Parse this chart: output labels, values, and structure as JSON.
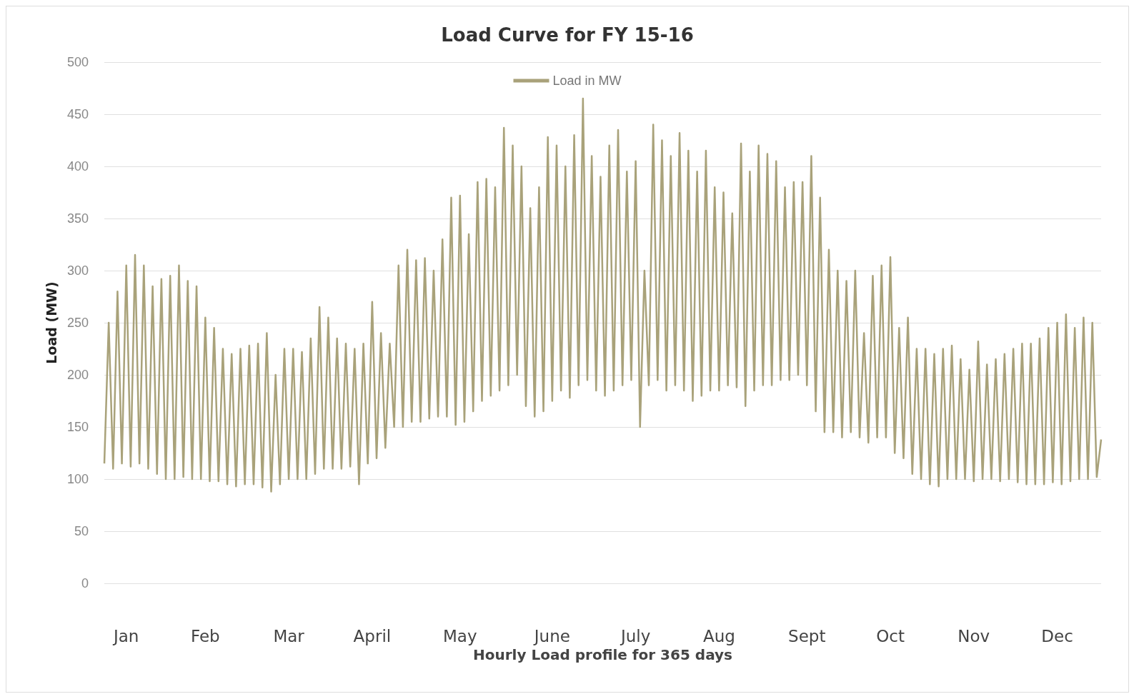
{
  "chart_data": {
    "type": "line",
    "title": "Load Curve for FY 15-16",
    "xlabel": "Hourly Load profile for 365 days",
    "ylabel": "Load (MW)",
    "categories": [
      null,
      null,
      null,
      null,
      null,
      "Jan",
      null,
      null,
      null,
      null,
      null,
      null,
      null,
      null,
      null,
      null,
      null,
      null,
      null,
      null,
      null,
      null,
      null,
      "Feb",
      null,
      null,
      null,
      null,
      null,
      null,
      null,
      null,
      null,
      null,
      null,
      null,
      null,
      null,
      null,
      null,
      null,
      null,
      "Mar",
      null,
      null,
      null,
      null,
      null,
      null,
      null,
      null,
      null,
      null,
      null,
      null,
      null,
      null,
      null,
      null,
      null,
      null,
      "April",
      null,
      null,
      null,
      null,
      null,
      null,
      null,
      null,
      null,
      null,
      null,
      null,
      null,
      null,
      null,
      null,
      null,
      null,
      null,
      "May",
      null,
      null,
      null,
      null,
      null,
      null,
      null,
      null,
      null,
      null,
      null,
      null,
      null,
      null,
      null,
      null,
      null,
      null,
      null,
      null,
      "June",
      null,
      null,
      null,
      null,
      null,
      null,
      null,
      null,
      null,
      null,
      null,
      null,
      null,
      null,
      null,
      null,
      null,
      null,
      "July",
      null,
      null,
      null,
      null,
      null,
      null,
      null,
      null,
      null,
      null,
      null,
      null,
      null,
      null,
      null,
      null,
      null,
      null,
      "Aug",
      null,
      null,
      null,
      null,
      null,
      null,
      null,
      null,
      null,
      null,
      null,
      null,
      null,
      null,
      null,
      null,
      null,
      null,
      null,
      "Sept",
      null,
      null,
      null,
      null,
      null,
      null,
      null,
      null,
      null,
      null,
      null,
      null,
      null,
      null,
      null,
      null,
      null,
      null,
      "Oct",
      null,
      null,
      null,
      null,
      null,
      null,
      null,
      null,
      null,
      null,
      null,
      null,
      null,
      null,
      null,
      null,
      null,
      null,
      "Nov",
      null,
      null,
      null,
      null,
      null,
      null,
      null,
      null,
      null,
      null,
      null,
      null,
      null,
      null,
      null,
      null,
      null,
      null,
      "Dec",
      null,
      null,
      null,
      null,
      null,
      null,
      null,
      null,
      null,
      null
    ],
    "ylim": [
      0,
      500
    ],
    "yticks": [
      0,
      50,
      100,
      150,
      200,
      250,
      300,
      350,
      400,
      450,
      500
    ],
    "grid": "y",
    "legend": "top",
    "marker": "none",
    "line_style": "solid",
    "series": [
      {
        "name": "Load in MW",
        "color": "#a9a27a",
        "values": [
          115,
          250,
          110,
          280,
          115,
          305,
          112,
          315,
          115,
          305,
          110,
          285,
          105,
          292,
          100,
          295,
          100,
          305,
          102,
          290,
          100,
          285,
          100,
          255,
          98,
          245,
          98,
          225,
          95,
          220,
          93,
          225,
          95,
          228,
          95,
          230,
          92,
          240,
          88,
          200,
          95,
          225,
          100,
          225,
          100,
          222,
          100,
          235,
          105,
          265,
          110,
          255,
          110,
          235,
          110,
          230,
          112,
          225,
          95,
          230,
          115,
          270,
          120,
          240,
          130,
          230,
          150,
          305,
          150,
          320,
          155,
          310,
          155,
          312,
          158,
          300,
          160,
          330,
          160,
          370,
          152,
          372,
          155,
          335,
          165,
          385,
          175,
          388,
          180,
          380,
          185,
          437,
          190,
          420,
          200,
          400,
          170,
          360,
          160,
          380,
          165,
          428,
          175,
          420,
          185,
          400,
          178,
          430,
          190,
          465,
          195,
          410,
          185,
          390,
          180,
          420,
          185,
          435,
          190,
          395,
          195,
          405,
          150,
          300,
          190,
          440,
          195,
          425,
          185,
          410,
          190,
          432,
          185,
          415,
          175,
          395,
          180,
          415,
          185,
          380,
          185,
          375,
          190,
          355,
          188,
          422,
          170,
          395,
          185,
          420,
          190,
          412,
          190,
          405,
          195,
          380,
          195,
          385,
          200,
          385,
          190,
          410,
          165,
          370,
          145,
          320,
          145,
          300,
          140,
          290,
          145,
          300,
          140,
          240,
          135,
          295,
          140,
          305,
          140,
          313,
          125,
          245,
          120,
          255,
          105,
          225,
          100,
          225,
          95,
          220,
          93,
          225,
          100,
          228,
          100,
          215,
          100,
          205,
          98,
          232,
          100,
          210,
          100,
          215,
          98,
          220,
          100,
          225,
          97,
          230,
          95,
          230,
          95,
          235,
          95,
          245,
          97,
          250,
          95,
          258,
          98,
          245,
          100,
          255,
          100,
          250,
          102,
          138
        ]
      }
    ]
  }
}
